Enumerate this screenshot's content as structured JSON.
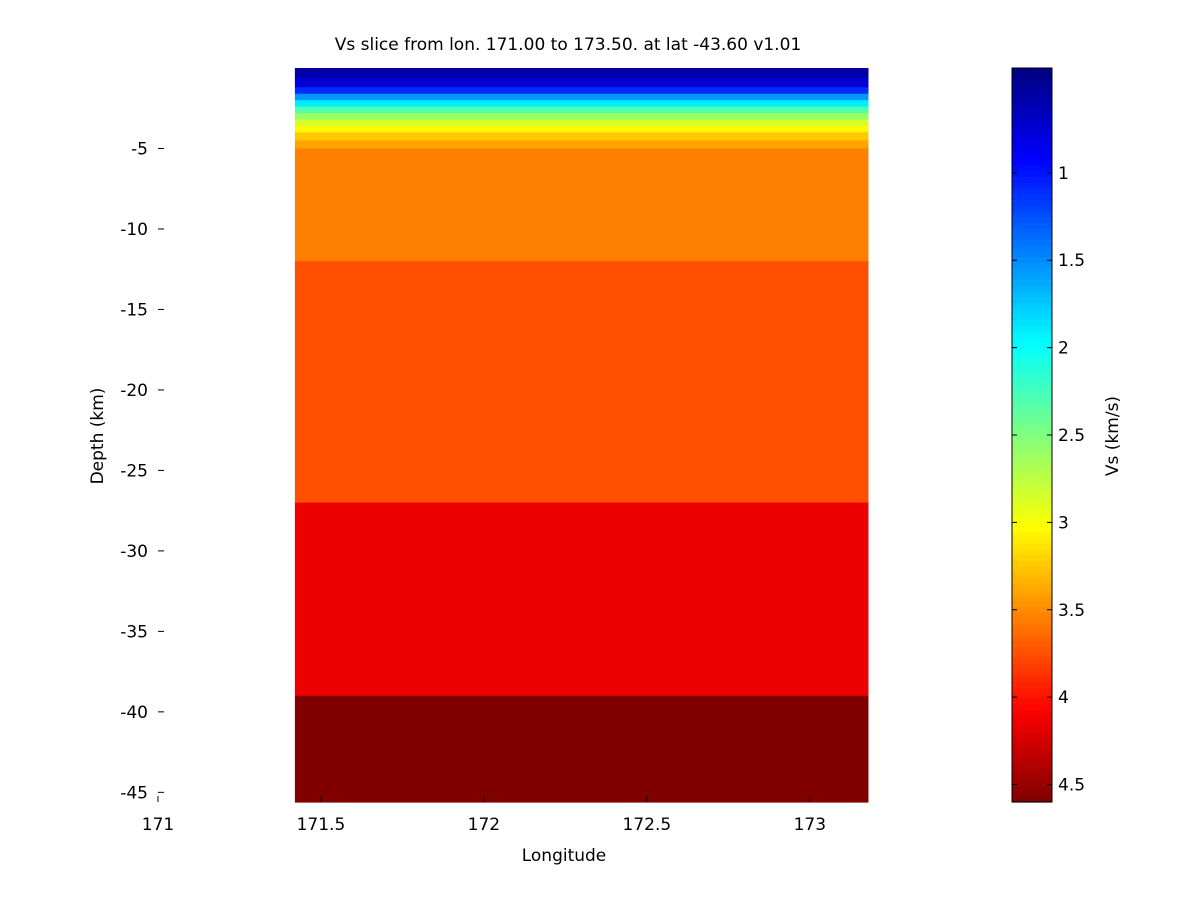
{
  "chart_data": {
    "type": "heatmap",
    "title": "Vs slice from lon. 171.00 to 173.50. at lat -43.60 v1.01",
    "xlabel": "Longitude",
    "ylabel": "Depth (km)",
    "colorbar_label": "Vs (km/s)",
    "xlim": [
      171.0,
      173.2
    ],
    "ylim": [
      -45.6,
      0.0
    ],
    "image_x_range": [
      171.42,
      173.18
    ],
    "x_ticks": [
      {
        "value": 171,
        "label": "171"
      },
      {
        "value": 171.5,
        "label": "171.5"
      },
      {
        "value": 172,
        "label": "172"
      },
      {
        "value": 172.5,
        "label": "172.5"
      },
      {
        "value": 173,
        "label": "173"
      }
    ],
    "y_ticks": [
      {
        "value": -5,
        "label": "-5"
      },
      {
        "value": -10,
        "label": "-10"
      },
      {
        "value": -15,
        "label": "-15"
      },
      {
        "value": -20,
        "label": "-20"
      },
      {
        "value": -25,
        "label": "-25"
      },
      {
        "value": -30,
        "label": "-30"
      },
      {
        "value": -35,
        "label": "-35"
      },
      {
        "value": -40,
        "label": "-40"
      },
      {
        "value": -45,
        "label": "-45"
      }
    ],
    "layers": [
      {
        "depth_top": 0.0,
        "depth_bottom": -0.6,
        "vs": 0.55
      },
      {
        "depth_top": -0.6,
        "depth_bottom": -1.2,
        "vs": 0.75
      },
      {
        "depth_top": -1.2,
        "depth_bottom": -1.6,
        "vs": 1.1
      },
      {
        "depth_top": -1.6,
        "depth_bottom": -2.0,
        "vs": 1.55
      },
      {
        "depth_top": -2.0,
        "depth_bottom": -2.4,
        "vs": 1.9
      },
      {
        "depth_top": -2.4,
        "depth_bottom": -2.8,
        "vs": 2.3
      },
      {
        "depth_top": -2.8,
        "depth_bottom": -3.2,
        "vs": 2.6
      },
      {
        "depth_top": -3.2,
        "depth_bottom": -3.6,
        "vs": 2.85
      },
      {
        "depth_top": -3.6,
        "depth_bottom": -4.0,
        "vs": 3.05
      },
      {
        "depth_top": -4.0,
        "depth_bottom": -4.5,
        "vs": 3.25
      },
      {
        "depth_top": -4.5,
        "depth_bottom": -5.0,
        "vs": 3.4
      },
      {
        "depth_top": -5.0,
        "depth_bottom": -12.0,
        "vs": 3.55
      },
      {
        "depth_top": -12.0,
        "depth_bottom": -27.0,
        "vs": 3.75
      },
      {
        "depth_top": -27.0,
        "depth_bottom": -39.0,
        "vs": 4.15
      },
      {
        "depth_top": -39.0,
        "depth_bottom": -45.6,
        "vs": 4.6
      }
    ],
    "colorbar": {
      "colormap": "jet",
      "vmin": 0.4,
      "vmax": 4.6,
      "direction": "reversed",
      "ticks": [
        {
          "value": 1,
          "label": "1"
        },
        {
          "value": 1.5,
          "label": "1.5"
        },
        {
          "value": 2,
          "label": "2"
        },
        {
          "value": 2.5,
          "label": "2.5"
        },
        {
          "value": 3,
          "label": "3"
        },
        {
          "value": 3.5,
          "label": "3.5"
        },
        {
          "value": 4,
          "label": "4"
        },
        {
          "value": 4.5,
          "label": "4.5"
        }
      ]
    },
    "grid": false
  }
}
